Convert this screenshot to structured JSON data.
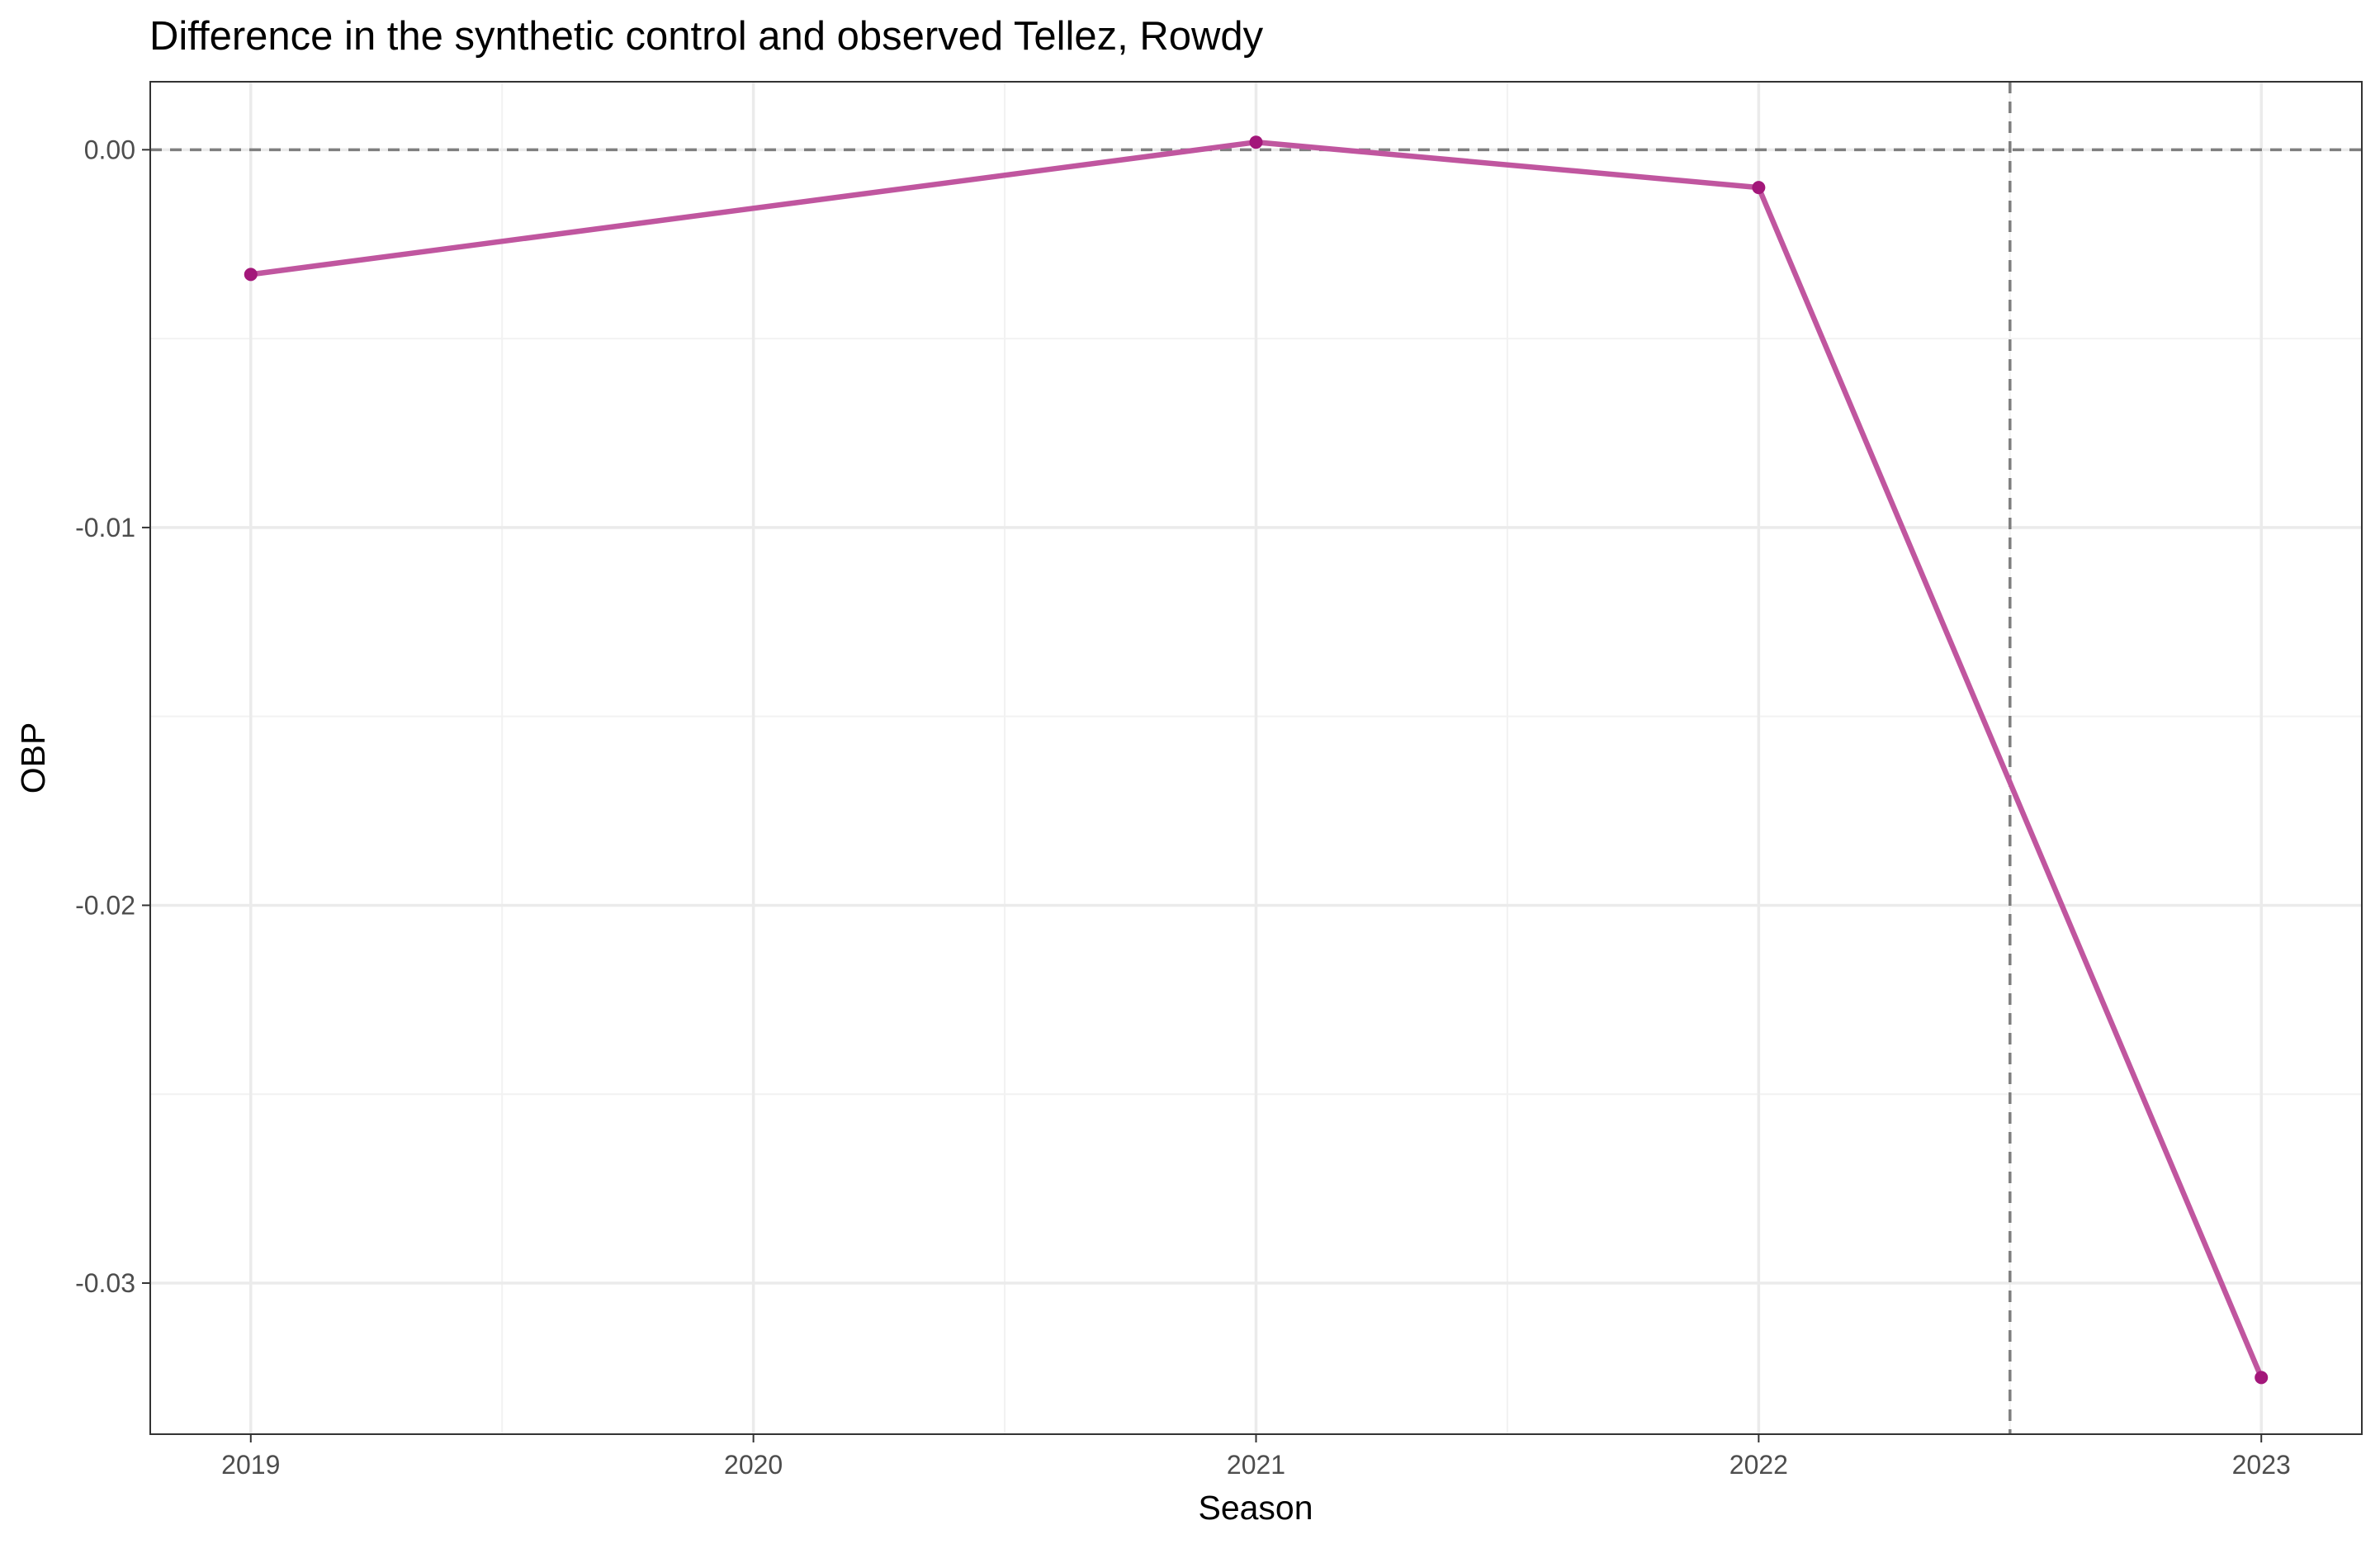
{
  "chart_data": {
    "type": "line",
    "title": "Difference in the synthetic control and observed Tellez, Rowdy",
    "xlabel": "Season",
    "ylabel": "OBP",
    "x": [
      2019,
      2020,
      2021,
      2022,
      2023
    ],
    "x_tick_labels": [
      "2019",
      "2020",
      "2021",
      "2022",
      "2023"
    ],
    "y_tick_values": [
      0.0,
      -0.01,
      -0.02,
      -0.03
    ],
    "y_tick_labels": [
      "0.00",
      "-0.01",
      "-0.02",
      "-0.03"
    ],
    "xlim": [
      2018.8,
      2023.2
    ],
    "ylim": [
      -0.034,
      0.0018
    ],
    "series": [
      {
        "color": "#c0569f",
        "point_color": "#a3177a",
        "points": [
          {
            "x": 2019,
            "y": -0.0033
          },
          {
            "x": 2021,
            "y": 0.0002
          },
          {
            "x": 2022,
            "y": -0.001
          },
          {
            "x": 2023,
            "y": -0.0325
          }
        ]
      }
    ],
    "reference_lines": {
      "hline_y": 0.0,
      "vline_x": 2022.5,
      "color": "#7f7f7f",
      "style": "dashed"
    },
    "grid": true,
    "theme": "bw"
  }
}
